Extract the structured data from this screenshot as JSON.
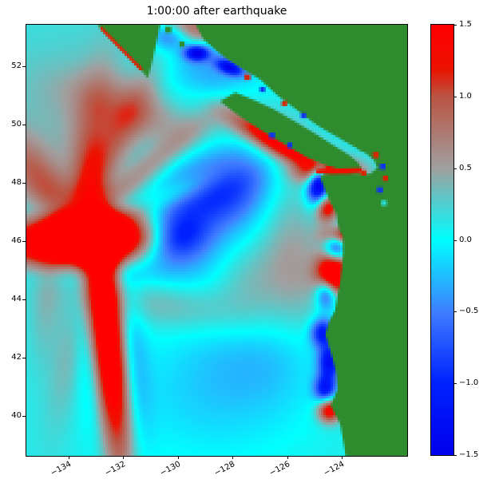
{
  "chart_data": {
    "type": "heatmap",
    "title": "1:00:00 after earthquake",
    "xlabel": "",
    "ylabel": "",
    "xlim": [
      -135.55,
      -121.6
    ],
    "ylim": [
      38.62,
      53.42
    ],
    "grid": false,
    "x_ticks": {
      "values": [
        -134,
        -132,
        -130,
        -128,
        -126,
        -124
      ],
      "labels": [
        "−134",
        "−132",
        "−130",
        "−128",
        "−126",
        "−124"
      ]
    },
    "y_ticks": {
      "values": [
        40,
        42,
        44,
        46,
        48,
        50,
        52
      ],
      "labels": [
        "40",
        "42",
        "44",
        "46",
        "48",
        "50",
        "52"
      ]
    },
    "colorbar": {
      "min": -1.5,
      "max": 1.5,
      "position": "right",
      "ticks": [
        {
          "v": 1.5,
          "label": "1.5"
        },
        {
          "v": 1.0,
          "label": "1.0"
        },
        {
          "v": 0.5,
          "label": "0.5"
        },
        {
          "v": 0.0,
          "label": "0.0"
        },
        {
          "v": -0.5,
          "label": "−0.5"
        },
        {
          "v": -1.0,
          "label": "−1.0"
        },
        {
          "v": -1.5,
          "label": "−1.5"
        }
      ]
    },
    "colormap_stops": [
      {
        "v": -1.5,
        "c": "#0000ee"
      },
      {
        "v": -1.0,
        "c": "#0022ff"
      },
      {
        "v": -0.5,
        "c": "#3f7fff"
      },
      {
        "v": 0.0,
        "c": "#00ffff"
      },
      {
        "v": 0.5,
        "c": "#a0a0a0"
      },
      {
        "v": 1.0,
        "c": "#bb5544"
      },
      {
        "v": 1.2,
        "c": "#ee1100"
      },
      {
        "v": 1.5,
        "c": "#ff0000"
      }
    ],
    "extent": {
      "lon_min": -135.55,
      "lon_max": -121.6,
      "lat_min": 38.62,
      "lat_max": 53.42
    },
    "field": {
      "base": 0.12,
      "features": [
        {
          "name": "nw-positive-background",
          "cx": -133.6,
          "cy": 49.6,
          "sx": 2.6,
          "sy": 2.4,
          "ang": 0,
          "amp": 0.28
        },
        {
          "name": "main-beam-ew",
          "cx": -133.5,
          "cy": 46.05,
          "sx": 2.0,
          "sy": 0.55,
          "ang": 3,
          "amp": 2.4
        },
        {
          "name": "source-core",
          "cx": -132.9,
          "cy": 46.0,
          "sx": 0.8,
          "sy": 0.8,
          "ang": 0,
          "amp": 1.2
        },
        {
          "name": "main-beam-ns",
          "cx": -132.55,
          "cy": 42.6,
          "sx": 2.9,
          "sy": 0.42,
          "ang": 96,
          "amp": 2.0
        },
        {
          "name": "ray-ne-1",
          "cx": -131.3,
          "cy": 48.3,
          "sx": 2.2,
          "sy": 0.38,
          "ang": 38,
          "amp": 0.55
        },
        {
          "name": "ray-ne-2",
          "cx": -132.3,
          "cy": 49.4,
          "sx": 2.2,
          "sy": 0.45,
          "ang": 60,
          "amp": 0.5
        },
        {
          "name": "ray-ne-3",
          "cx": -130.6,
          "cy": 47.4,
          "sx": 1.8,
          "sy": 0.32,
          "ang": 22,
          "amp": 0.45
        },
        {
          "name": "ray-n",
          "cx": -133.2,
          "cy": 49.3,
          "sx": 2.0,
          "sy": 0.5,
          "ang": 80,
          "amp": 0.45
        },
        {
          "name": "ray-nw",
          "cx": -134.9,
          "cy": 47.9,
          "sx": 1.6,
          "sy": 0.55,
          "ang": 130,
          "amp": 0.7
        },
        {
          "name": "trough-main",
          "cx": -129.2,
          "cy": 46.9,
          "sx": 2.0,
          "sy": 1.55,
          "ang": 15,
          "amp": -0.85
        },
        {
          "name": "trough-core",
          "cx": -130.05,
          "cy": 46.15,
          "sx": 0.75,
          "sy": 0.55,
          "ang": 10,
          "amp": -0.9
        },
        {
          "name": "trough-ne",
          "cx": -127.9,
          "cy": 48.1,
          "sx": 1.25,
          "sy": 0.8,
          "ang": 30,
          "amp": -0.55
        },
        {
          "name": "north-trough",
          "cx": -128.8,
          "cy": 51.9,
          "sx": 1.4,
          "sy": 0.95,
          "ang": 0,
          "amp": -0.5
        },
        {
          "name": "hecate-trough",
          "cx": -130.3,
          "cy": 53.1,
          "sx": 0.5,
          "sy": 0.35,
          "ang": 0,
          "amp": -0.8
        },
        {
          "name": "navy-speck-1",
          "cx": -129.3,
          "cy": 52.45,
          "sx": 0.3,
          "sy": 0.18,
          "ang": 0,
          "amp": -1.4
        },
        {
          "name": "navy-speck-2",
          "cx": -128.1,
          "cy": 51.95,
          "sx": 0.35,
          "sy": 0.16,
          "ang": -20,
          "amp": -1.2
        },
        {
          "name": "halo-s",
          "cx": -130.4,
          "cy": 43.8,
          "sx": 1.9,
          "sy": 0.6,
          "ang": -8,
          "amp": 0.38
        },
        {
          "name": "halo-se",
          "cx": -127.5,
          "cy": 44.8,
          "sx": 1.0,
          "sy": 1.5,
          "ang": 15,
          "amp": 0.4
        },
        {
          "name": "halo-e",
          "cx": -125.8,
          "cy": 45.7,
          "sx": 0.85,
          "sy": 2.2,
          "ang": 8,
          "amp": 0.45
        },
        {
          "name": "halo-ne",
          "cx": -126.6,
          "cy": 49.6,
          "sx": 1.6,
          "sy": 0.55,
          "ang": -25,
          "amp": 0.5
        },
        {
          "name": "halo-n",
          "cx": -131.5,
          "cy": 50.4,
          "sx": 1.9,
          "sy": 0.6,
          "ang": -18,
          "amp": 0.4
        },
        {
          "name": "north-crest",
          "cx": -129.5,
          "cy": 53.3,
          "sx": 0.9,
          "sy": 0.35,
          "ang": -10,
          "amp": 0.9
        },
        {
          "name": "south-trough-broad",
          "cx": -128.4,
          "cy": 40.9,
          "sx": 2.6,
          "sy": 1.7,
          "ang": 5,
          "amp": -0.32
        },
        {
          "name": "south-trough-2",
          "cx": -126.6,
          "cy": 42.4,
          "sx": 1.6,
          "sy": 1.2,
          "ang": 0,
          "amp": -0.25
        },
        {
          "name": "ripple-w-1",
          "cx": -133.9,
          "cy": 42.3,
          "sx": 2.0,
          "sy": 0.45,
          "ang": 78,
          "amp": 0.3
        },
        {
          "name": "ripple-w-2",
          "cx": -134.8,
          "cy": 44.0,
          "sx": 1.6,
          "sy": 0.4,
          "ang": 85,
          "amp": 0.25
        },
        {
          "name": "moat-n",
          "cx": -133.3,
          "cy": 47.15,
          "sx": 2.0,
          "sy": 0.3,
          "ang": 3,
          "amp": -0.35
        },
        {
          "name": "moat-s",
          "cx": -133.4,
          "cy": 44.9,
          "sx": 1.8,
          "sy": 0.35,
          "ang": 0,
          "amp": -0.3
        },
        {
          "name": "moat-w",
          "cx": -133.4,
          "cy": 42.5,
          "sx": 2.2,
          "sy": 0.35,
          "ang": 96,
          "amp": -0.3
        },
        {
          "name": "moat-e",
          "cx": -131.7,
          "cy": 42.6,
          "sx": 2.4,
          "sy": 0.4,
          "ang": 96,
          "amp": -0.35
        },
        {
          "name": "coast-crest-juan-de-fuca",
          "cx": -124.45,
          "cy": 48.35,
          "sx": 0.75,
          "sy": 0.3,
          "ang": 0,
          "amp": 1.6
        },
        {
          "name": "coast-crest-newport",
          "cx": -124.3,
          "cy": 44.85,
          "sx": 0.42,
          "sy": 0.5,
          "ang": 0,
          "amp": 2.2
        },
        {
          "name": "coast-trough-1",
          "cx": -124.2,
          "cy": 45.9,
          "sx": 0.3,
          "sy": 0.45,
          "ang": 0,
          "amp": -1.4
        },
        {
          "name": "coast-trough-2",
          "cx": -124.85,
          "cy": 47.8,
          "sx": 0.3,
          "sy": 0.5,
          "ang": 0,
          "amp": -1.6
        },
        {
          "name": "coast-trough-3",
          "cx": -124.75,
          "cy": 48.2,
          "sx": 0.25,
          "sy": 0.3,
          "ang": 0,
          "amp": -1.2
        },
        {
          "name": "coast-crest-columbia",
          "cx": -124.0,
          "cy": 46.2,
          "sx": 0.45,
          "sy": 0.25,
          "ang": 0,
          "amp": 1.8
        },
        {
          "name": "coast-crest-2",
          "cx": -124.55,
          "cy": 47.15,
          "sx": 0.3,
          "sy": 0.35,
          "ang": 0,
          "amp": 1.5
        },
        {
          "name": "coast-trough-4",
          "cx": -124.55,
          "cy": 44.25,
          "sx": 0.28,
          "sy": 0.4,
          "ang": 0,
          "amp": -1.3
        },
        {
          "name": "coast-trough-5",
          "cx": -124.7,
          "cy": 42.85,
          "sx": 0.3,
          "sy": 0.35,
          "ang": 0,
          "amp": -1.2
        },
        {
          "name": "coast-trough-6",
          "cx": -124.45,
          "cy": 41.85,
          "sx": 0.28,
          "sy": 0.4,
          "ang": 0,
          "amp": -1.3
        },
        {
          "name": "coast-trough-7",
          "cx": -124.6,
          "cy": 40.9,
          "sx": 0.28,
          "sy": 0.35,
          "ang": 0,
          "amp": -1.2
        },
        {
          "name": "coast-crest-3",
          "cx": -124.45,
          "cy": 40.2,
          "sx": 0.3,
          "sy": 0.3,
          "ang": 0,
          "amp": 1.5
        },
        {
          "name": "vi-coast-crest",
          "cx": -126.3,
          "cy": 49.35,
          "sx": 1.3,
          "sy": 0.28,
          "ang": -28,
          "amp": 1.2
        }
      ]
    },
    "land": {
      "color": "#2e8b2e",
      "polygons": {
        "mainland": [
          [
            -129.35,
            53.42
          ],
          [
            -129.05,
            52.9
          ],
          [
            -128.3,
            52.3
          ],
          [
            -127.55,
            51.85
          ],
          [
            -127.0,
            51.55
          ],
          [
            -126.35,
            51.0
          ],
          [
            -125.5,
            50.4
          ],
          [
            -124.75,
            49.85
          ],
          [
            -123.85,
            49.3
          ],
          [
            -123.1,
            49.0
          ],
          [
            -122.8,
            48.75
          ],
          [
            -122.7,
            48.5
          ],
          [
            -122.95,
            48.3
          ],
          [
            -124.0,
            48.3
          ],
          [
            -124.65,
            48.3
          ],
          [
            -124.78,
            48.15
          ],
          [
            -124.45,
            47.4
          ],
          [
            -124.2,
            46.95
          ],
          [
            -124.1,
            46.4
          ],
          [
            -123.95,
            46.15
          ],
          [
            -123.95,
            45.5
          ],
          [
            -124.05,
            44.6
          ],
          [
            -124.25,
            43.6
          ],
          [
            -124.45,
            43.25
          ],
          [
            -124.6,
            42.8
          ],
          [
            -124.4,
            42.2
          ],
          [
            -124.2,
            41.5
          ],
          [
            -124.15,
            40.9
          ],
          [
            -124.4,
            40.35
          ],
          [
            -124.05,
            39.7
          ],
          [
            -123.85,
            38.62
          ],
          [
            -121.6,
            38.62
          ],
          [
            -121.6,
            53.42
          ]
        ],
        "vancouver_island": [
          [
            -128.45,
            50.78
          ],
          [
            -127.85,
            50.35
          ],
          [
            -127.2,
            49.95
          ],
          [
            -126.6,
            49.6
          ],
          [
            -125.9,
            49.2
          ],
          [
            -125.25,
            48.85
          ],
          [
            -124.6,
            48.6
          ],
          [
            -123.95,
            48.42
          ],
          [
            -123.5,
            48.32
          ],
          [
            -123.25,
            48.45
          ],
          [
            -123.4,
            48.7
          ],
          [
            -123.75,
            48.95
          ],
          [
            -124.35,
            49.3
          ],
          [
            -125.0,
            49.7
          ],
          [
            -125.7,
            50.1
          ],
          [
            -126.45,
            50.5
          ],
          [
            -127.25,
            50.85
          ],
          [
            -127.9,
            51.1
          ]
        ],
        "haida_gwaii": [
          [
            -132.95,
            53.42
          ],
          [
            -132.4,
            52.9
          ],
          [
            -131.7,
            52.25
          ],
          [
            -131.1,
            51.6
          ],
          [
            -130.95,
            52.1
          ],
          [
            -130.8,
            52.75
          ],
          [
            -130.65,
            53.42
          ]
        ]
      }
    },
    "coastal_marks": [
      {
        "name": "juan-de-fuca-crest",
        "type": "line",
        "from": [
          -124.85,
          48.38
        ],
        "to": [
          -123.35,
          48.42
        ],
        "width": 2,
        "color": "#ee1100"
      },
      {
        "name": "georgia-strait-water",
        "type": "line",
        "from": [
          -125.2,
          50.05
        ],
        "to": [
          -123.45,
          49.1
        ],
        "width": 1.6,
        "color": "#2de0e0"
      },
      {
        "name": "haida-gwaii-west-fringe",
        "type": "line",
        "from": [
          -132.8,
          53.3
        ],
        "to": [
          -131.35,
          51.9
        ],
        "width": 1.2,
        "color": "#dd2200"
      },
      {
        "name": "puget-spot-1",
        "type": "spot",
        "at": [
          -122.75,
          48.95
        ],
        "size": 2.4,
        "color": "#dd2200"
      },
      {
        "name": "puget-spot-2",
        "type": "spot",
        "at": [
          -122.5,
          48.55
        ],
        "size": 2.4,
        "color": "#1133ee"
      },
      {
        "name": "puget-spot-3",
        "type": "spot",
        "at": [
          -122.4,
          48.15
        ],
        "size": 2.2,
        "color": "#dd2200"
      },
      {
        "name": "puget-spot-4",
        "type": "spot",
        "at": [
          -122.6,
          47.75
        ],
        "size": 2.4,
        "color": "#1133ee"
      },
      {
        "name": "puget-spot-5",
        "type": "spot",
        "at": [
          -122.45,
          47.3
        ],
        "size": 2.2,
        "color": "#2de0e0"
      },
      {
        "name": "victoria-spot",
        "type": "spot",
        "at": [
          -123.2,
          48.33
        ],
        "size": 2.2,
        "color": "#dd2200"
      },
      {
        "name": "vi-west-spot-1",
        "type": "spot",
        "at": [
          -126.55,
          49.62
        ],
        "size": 2.4,
        "color": "#1133ee"
      },
      {
        "name": "vi-west-spot-2",
        "type": "spot",
        "at": [
          -125.9,
          49.28
        ],
        "size": 2.2,
        "color": "#1133ee"
      },
      {
        "name": "bc-coast-spot-1",
        "type": "spot",
        "at": [
          -127.45,
          51.62
        ],
        "size": 2.4,
        "color": "#dd2200"
      },
      {
        "name": "bc-coast-spot-2",
        "type": "spot",
        "at": [
          -126.9,
          51.2
        ],
        "size": 2.2,
        "color": "#1133ee"
      },
      {
        "name": "bc-coast-spot-3",
        "type": "spot",
        "at": [
          -126.1,
          50.72
        ],
        "size": 2.2,
        "color": "#dd2200"
      },
      {
        "name": "bc-coast-spot-4",
        "type": "spot",
        "at": [
          -125.4,
          50.3
        ],
        "size": 2.2,
        "color": "#1133ee"
      },
      {
        "name": "island-speck-1",
        "type": "spot",
        "at": [
          -130.35,
          53.25
        ],
        "size": 2.6,
        "color": "#2e8b2e"
      },
      {
        "name": "island-speck-2",
        "type": "spot",
        "at": [
          -129.85,
          52.75
        ],
        "size": 2.2,
        "color": "#2e8b2e"
      }
    ]
  }
}
